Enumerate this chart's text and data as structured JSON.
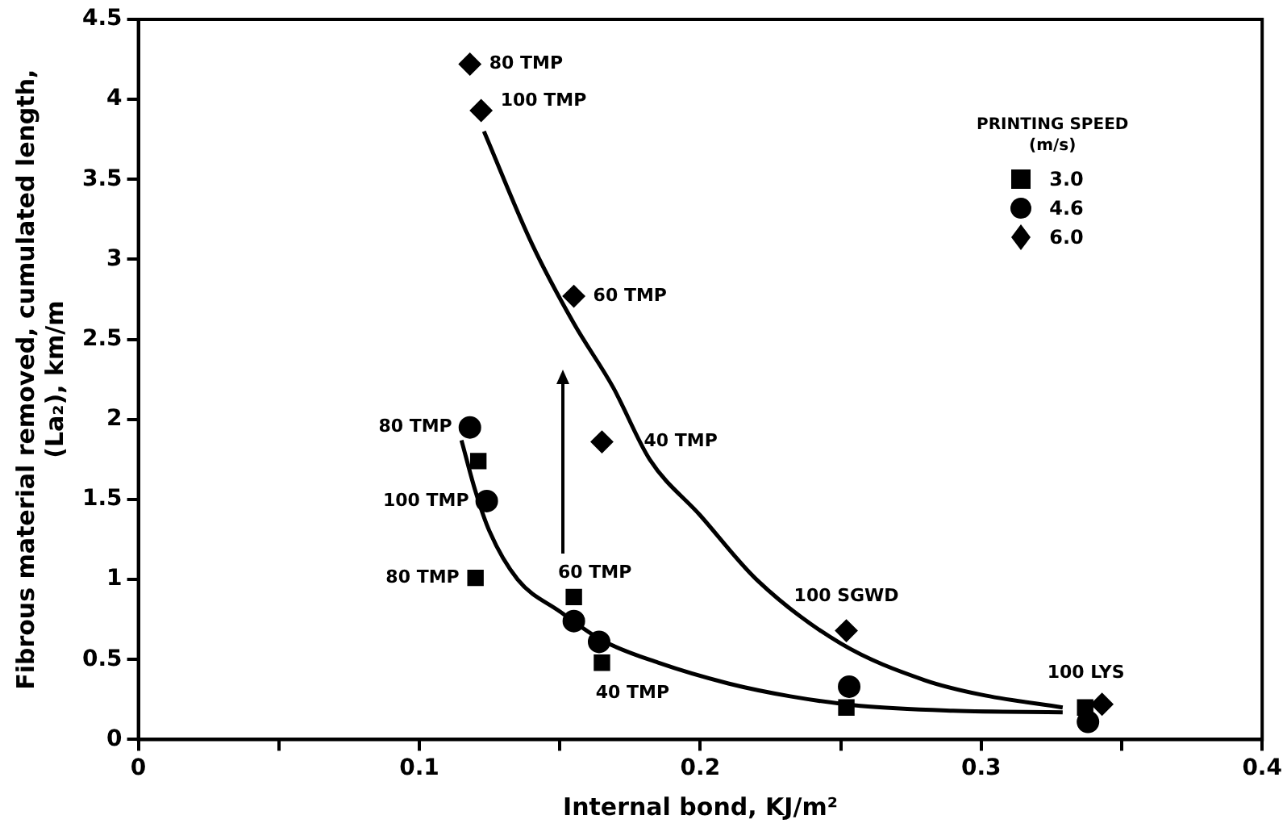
{
  "chart_data": {
    "type": "scatter",
    "xlabel": "Internal bond, KJ/m²",
    "ylabel": "Fibrous material removed, cumulated length, (La₂), km/m",
    "legend_title": "PRINTING SPEED (m/s)",
    "legend": "top right",
    "grid": false,
    "xlim": [
      0,
      0.4
    ],
    "xticks": [
      0,
      {
        "value": 0.05,
        "label": null
      },
      0.1,
      {
        "value": 0.15,
        "label": null
      },
      0.2,
      {
        "value": 0.25,
        "label": null
      },
      0.3,
      {
        "value": 0.35,
        "label": null
      },
      0.4
    ],
    "ylim": [
      0,
      4.5
    ],
    "yticks": [
      0,
      0.5,
      1,
      1.5,
      2,
      2.5,
      3,
      3.5,
      4,
      4.5
    ],
    "series": [
      {
        "name": "3.0",
        "color": "#000000",
        "marker": "square",
        "x": [
          0.121,
          0.12,
          0.155,
          0.165,
          0.252,
          0.337
        ],
        "values": [
          1.74,
          1.01,
          0.89,
          0.48,
          0.2,
          0.2
        ]
      },
      {
        "name": "4.6",
        "color": "#000000",
        "marker": "circle",
        "x": [
          0.118,
          0.124,
          0.155,
          0.164,
          0.253,
          0.338
        ],
        "values": [
          1.95,
          1.49,
          0.74,
          0.61,
          0.33,
          0.11
        ]
      },
      {
        "name": "6.0",
        "color": "#000000",
        "marker": "diamond",
        "x": [
          0.118,
          0.122,
          0.155,
          0.165,
          0.252,
          0.343
        ],
        "values": [
          4.22,
          3.93,
          2.77,
          1.86,
          0.68,
          0.22
        ]
      },
      {
        "type": "line",
        "color": "#000000",
        "marker": "none",
        "x": [
          0.123,
          0.14,
          0.155,
          0.169,
          0.182,
          0.2,
          0.22,
          0.25,
          0.28,
          0.3,
          0.329
        ],
        "values": [
          3.8,
          3.1,
          2.6,
          2.2,
          1.75,
          1.4,
          1.0,
          0.6,
          0.37,
          0.28,
          0.2
        ]
      },
      {
        "type": "line",
        "color": "#000000",
        "marker": "none",
        "x": [
          0.115,
          0.12,
          0.125,
          0.135,
          0.15,
          0.165,
          0.185,
          0.21,
          0.232,
          0.257,
          0.29,
          0.329
        ],
        "values": [
          1.87,
          1.55,
          1.3,
          1.0,
          0.8,
          0.62,
          0.48,
          0.35,
          0.27,
          0.21,
          0.18,
          0.17
        ]
      }
    ],
    "annotations": [
      {
        "text": "80 TMP",
        "x": 0.118,
        "y": 4.22
      },
      {
        "text": "100 TMP",
        "x": 0.122,
        "y": 3.93
      },
      {
        "text": "60 TMP",
        "x": 0.155,
        "y": 2.77
      },
      {
        "text": "40 TMP",
        "x": 0.165,
        "y": 1.86
      },
      {
        "text": "80 TMP",
        "x": 0.118,
        "y": 1.95
      },
      {
        "text": "100 TMP",
        "x": 0.124,
        "y": 1.49
      },
      {
        "text": "80 TMP",
        "x": 0.12,
        "y": 1.01
      },
      {
        "text": "60 TMP",
        "x": 0.155,
        "y": 0.89
      },
      {
        "text": "40 TMP",
        "x": 0.165,
        "y": 0.48
      },
      {
        "text": "100 SGWD",
        "x": 0.252,
        "y": 0.68
      },
      {
        "text": "100 LYS",
        "x": 0.343,
        "y": 0.22
      }
    ]
  }
}
